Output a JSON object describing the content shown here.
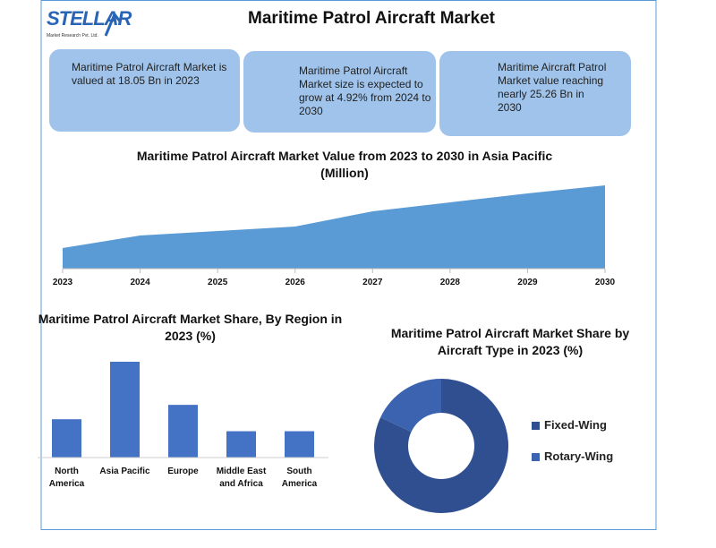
{
  "header": {
    "logo": "STELLAR",
    "logo_tagline": "Market Research Pvt. Ltd.",
    "title": "Maritime Patrol Aircraft Market"
  },
  "info_boxes": [
    "Maritime Patrol Aircraft Market is valued at 18.05 Bn in 2023",
    "Maritime Patrol Aircraft Market size is expected to grow at 4.92% from 2024 to 2030",
    "Maritime Aircraft Patrol Market value reaching nearly 25.26 Bn in 2030"
  ],
  "chart_data": [
    {
      "type": "area",
      "title": "Maritime Patrol Aircraft Market Value from 2023 to 2030 in Asia Pacific (Million)",
      "categories": [
        "2023",
        "2024",
        "2025",
        "2026",
        "2027",
        "2028",
        "2029",
        "2030"
      ],
      "values": [
        23,
        37,
        42,
        47,
        64,
        74,
        84,
        93
      ],
      "color": "#5b9bd5",
      "ylim": [
        0,
        100
      ]
    },
    {
      "type": "bar",
      "title": "Maritime Patrol Aircraft Market Share, By Region in 2023 (%)",
      "categories": [
        "North America",
        "Asia Pacific",
        "Europe",
        "Middle East and Africa",
        "South America"
      ],
      "values": [
        16,
        40,
        22,
        11,
        11
      ],
      "color": "#4472c4",
      "ylim": [
        0,
        40
      ]
    },
    {
      "type": "donut",
      "title": "Maritime Patrol Aircraft Market Share by Aircraft Type in 2023 (%)",
      "series": [
        {
          "name": "Fixed-Wing",
          "color": "#2f4f91",
          "values": [
            82
          ]
        },
        {
          "name": "Rotary-Wing",
          "color": "#3c63b0",
          "values": [
            18
          ]
        }
      ]
    }
  ]
}
